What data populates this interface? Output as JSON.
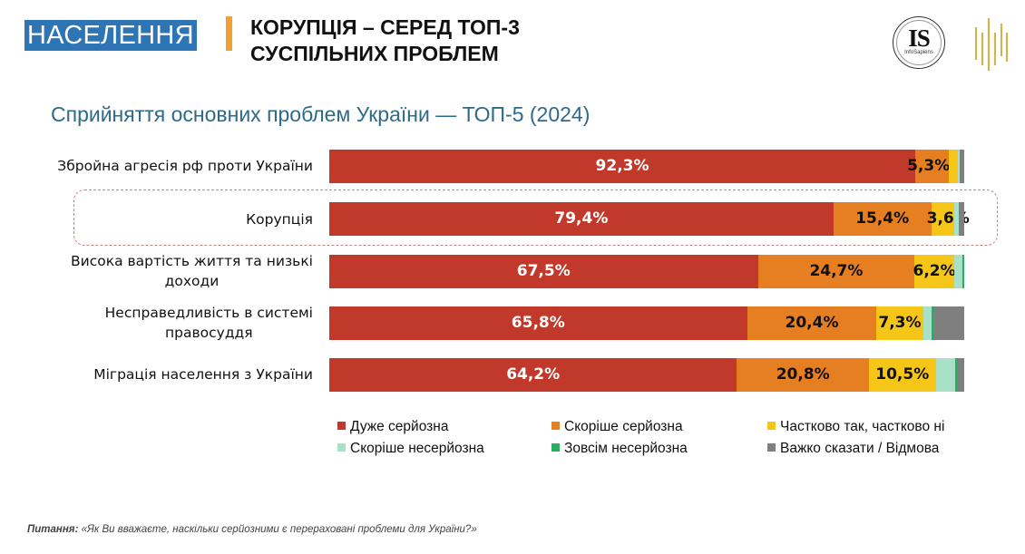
{
  "header": {
    "section_tag": "НАСЕЛЕННЯ",
    "title_line1": "КОРУПЦІЯ – СЕРЕД ТОП-3",
    "title_line2": "СУСПІЛЬНИХ ПРОБЛЕМ",
    "logo_is_text": "IS",
    "logo_is_subtext": "InfoSapiens",
    "accent_color": "#f0a030",
    "tag_color": "#2e75b6"
  },
  "chart_data": {
    "type": "bar",
    "orientation": "horizontal",
    "stacked": true,
    "title": "Сприйняття основних проблем України — ТОП-5 (2024)",
    "xlabel": "",
    "ylabel": "",
    "xlim": [
      0,
      100
    ],
    "unit": "%",
    "grid": false,
    "legend_position": "bottom",
    "highlighted_category": "Корупція",
    "categories": [
      "Збройна агресія рф проти України",
      "Корупція",
      "Висока вартість життя та низькі доходи",
      "Несправедливість в системі правосуддя",
      "Міграція населення з України"
    ],
    "series": [
      {
        "name": "Дуже серйозна",
        "color": "#c0392b",
        "label_color": "#ffffff",
        "values": [
          92.3,
          79.4,
          67.5,
          65.8,
          64.2
        ],
        "labels": [
          "92,3%",
          "79,4%",
          "67,5%",
          "65,8%",
          "64,2%"
        ]
      },
      {
        "name": "Скоріше серйозна",
        "color": "#e67e22",
        "label_color": "#111111",
        "values": [
          5.3,
          15.4,
          24.7,
          20.4,
          20.8
        ],
        "labels": [
          "5,3%",
          "15,4%",
          "24,7%",
          "20,4%",
          "20,8%"
        ]
      },
      {
        "name": "Частково так, частково ні",
        "color": "#f5c518",
        "label_color": "#111111",
        "values": [
          1.4,
          3.6,
          6.2,
          7.3,
          10.5
        ],
        "labels": [
          "",
          "3,6%",
          "6,2%",
          "7,3%",
          "10,5%"
        ]
      },
      {
        "name": "Скоріше несерйозна",
        "color": "#a8e0c8",
        "label_color": "#111111",
        "values": [
          0.3,
          0.8,
          1.3,
          1.4,
          3.0
        ],
        "labels": [
          "",
          "",
          "",
          "",
          ""
        ]
      },
      {
        "name": "Зовсім несерйозна",
        "color": "#27ae60",
        "label_color": "#111111",
        "values": [
          0.0,
          0.0,
          0.3,
          0.3,
          0.4
        ],
        "labels": [
          "",
          "",
          "",
          "",
          ""
        ]
      },
      {
        "name": "Важко сказати / Відмова",
        "color": "#7f7f7f",
        "label_color": "#111111",
        "values": [
          0.7,
          0.8,
          0.0,
          4.8,
          1.1
        ],
        "labels": [
          "",
          "",
          "",
          "",
          ""
        ]
      }
    ]
  },
  "category_label_lines": [
    [
      "Збройна агресія рф проти України"
    ],
    [
      "Корупція"
    ],
    [
      "Висока вартість життя та низькі",
      "доходи"
    ],
    [
      "Несправедливість в системі",
      "правосуддя"
    ],
    [
      "Міграція населення з України"
    ]
  ],
  "footnote": {
    "label": "Питання:",
    "text": " «Як Ви вважаєте, наскільки серйозними є перераховані проблеми для України?»"
  }
}
